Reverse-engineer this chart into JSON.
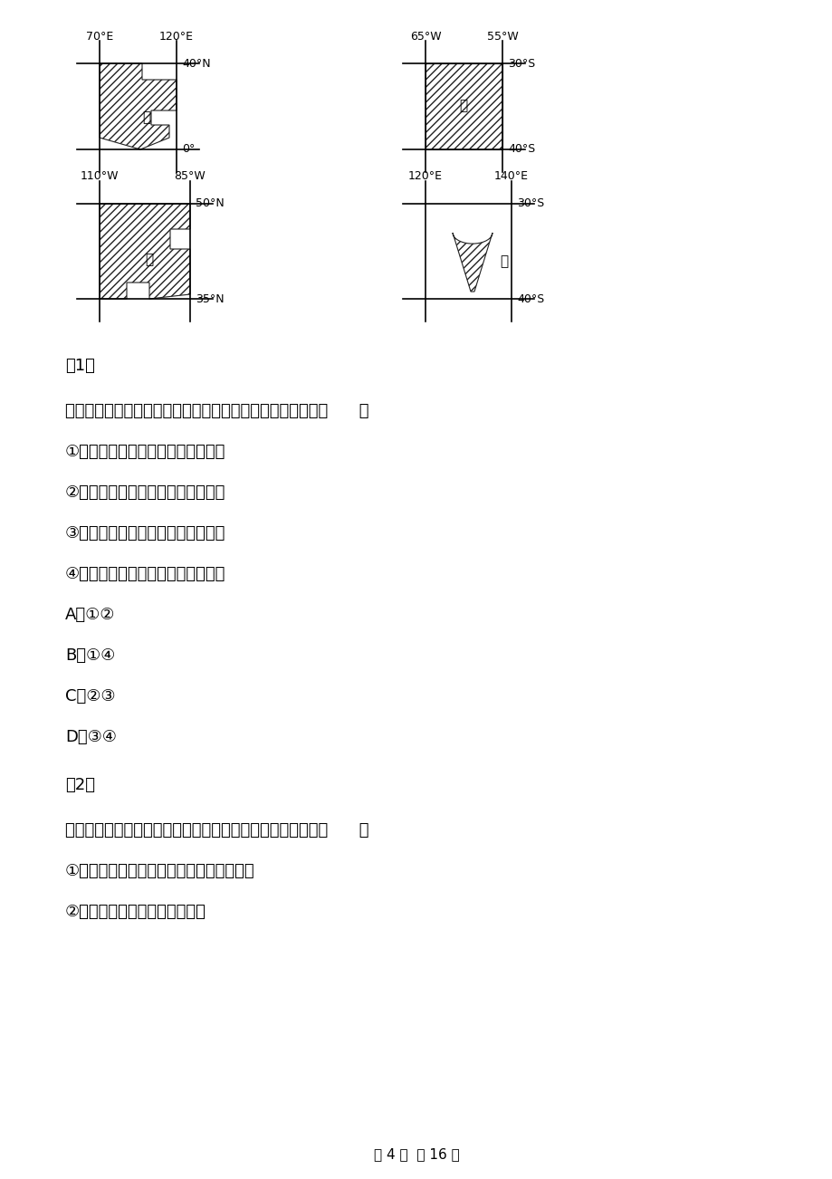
{
  "background_color": "#ffffff",
  "page_footer": "第 4 页  共 16 页",
  "question_number_1": "（1）",
  "question_1": "有关甲、乙、丙、丁四地区农业生产条件的叙述，正确的有（      ）",
  "options_1": [
    "①甲地区雨热同期，但气象灾害频繁",
    "②乙地区气候湿润，适宜发展种植业",
    "③丙地区劳动力丰富，水陆交通便利",
    "④丁地区土地广阔，但灌溉水源不足"
  ],
  "choices_1": [
    "A．①②",
    "B．①④",
    "C．②③",
    "D．③④"
  ],
  "question_number_2": "（2）",
  "question_2": "有关甲、乙、丙、丁四地区农业生产特点的叙述，正确的有（      ）",
  "options_2": [
    "①甲地区农业生产科技水平低，但商品率高",
    "②乙地区牧场广阔，以牧羊为主"
  ]
}
